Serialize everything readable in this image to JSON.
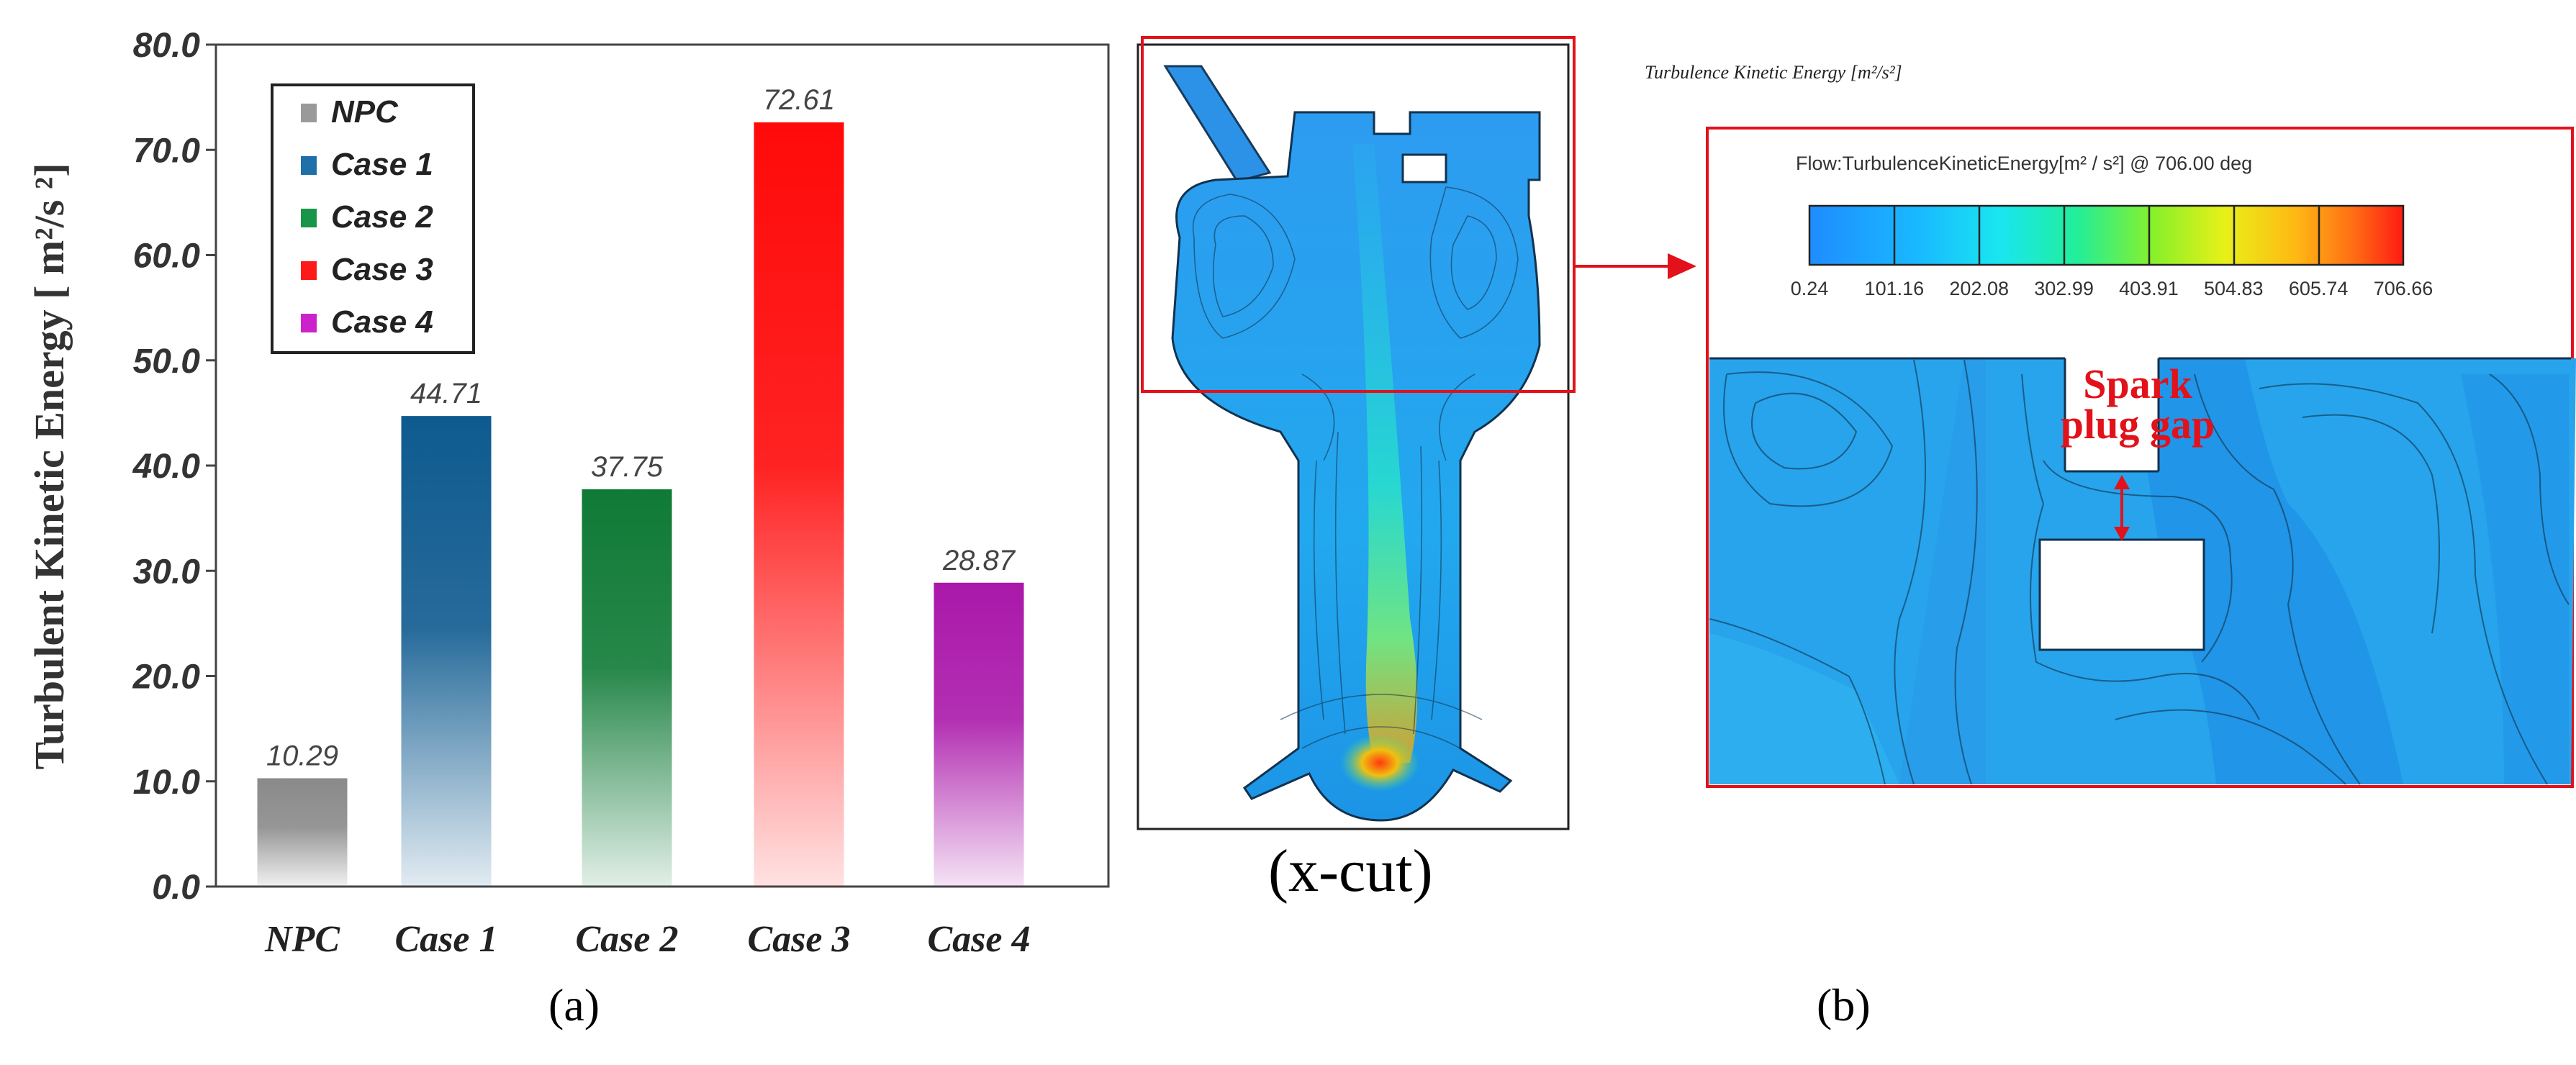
{
  "chart_data": {
    "type": "bar",
    "categories": [
      "NPC",
      "Case 1",
      "Case 2",
      "Case 3",
      "Case 4"
    ],
    "values": [
      10.29,
      44.71,
      37.75,
      72.61,
      28.87
    ],
    "value_labels": [
      "10.29",
      "44.71",
      "37.75",
      "72.61",
      "28.87"
    ],
    "ylabel": "Turbulent Kinetic Energy [ m²/s ²]",
    "ylim": [
      0,
      80
    ],
    "yticks": [
      "0.0",
      "10.0",
      "20.0",
      "30.0",
      "40.0",
      "50.0",
      "60.0",
      "70.0",
      "80.0"
    ],
    "legend": [
      {
        "name": "NPC",
        "color": "#9a9a9a"
      },
      {
        "name": "Case 1",
        "color": "#1f6fa8"
      },
      {
        "name": "Case 2",
        "color": "#19954a"
      },
      {
        "name": "Case 3",
        "color": "#ff1a1a"
      },
      {
        "name": "Case 4",
        "color": "#cc22cc"
      }
    ],
    "legend_position": "top-left",
    "bar_colors": [
      "#8a8a8a",
      "#0e5a8f",
      "#0f7a36",
      "#ff0a0a",
      "#aa18aa"
    ]
  },
  "panel_a_label": "(a)",
  "panel_b_label": "(b)",
  "cut_label": "(x-cut)",
  "contour_title": "Turbulence Kinetic Energy [m²/s²]",
  "zoom_title": "Flow:TurbulenceKineticEnergy[m² / s²] @ 706.00 deg",
  "colorbar_ticks": [
    "0.24",
    "101.16",
    "202.08",
    "302.99",
    "403.91",
    "504.83",
    "605.74",
    "706.66"
  ],
  "spark_label_line1": "Spark",
  "spark_label_line2": "plug gap"
}
